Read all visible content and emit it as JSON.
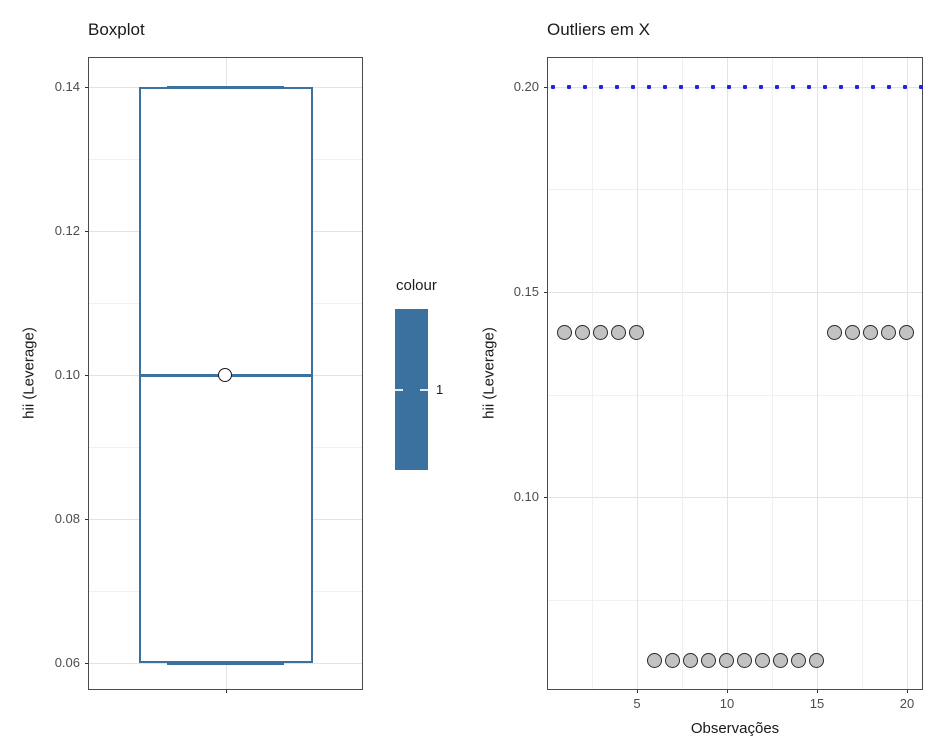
{
  "legend": {
    "title": "colour",
    "tick_label": "1",
    "bar_color": "#3a719f"
  },
  "chart_data": [
    {
      "id": "boxplot",
      "type": "boxplot",
      "title": "Boxplot",
      "xlabel": "",
      "ylabel": "hii (Leverage)",
      "y_major_ticks": [
        0.06,
        0.08,
        0.1,
        0.12,
        0.14
      ],
      "y_minor_gridlines": [
        0.07,
        0.09,
        0.11,
        0.13
      ],
      "ylim": [
        0.05625,
        0.144167
      ],
      "categories": [
        ""
      ],
      "box": {
        "whisker_low": 0.06,
        "q1": 0.06,
        "median": 0.1,
        "q3": 0.14,
        "whisker_high": 0.14,
        "center_point": 0.1
      },
      "box_color": "#3a719f",
      "grid": true,
      "legend_position": "right"
    },
    {
      "id": "scatter",
      "type": "scatter",
      "title": "Outliers em X",
      "xlabel": "Observações",
      "ylabel": "hii (Leverage)",
      "x_major_ticks": [
        5,
        10,
        15,
        20
      ],
      "x_minor_gridlines": [
        2.5,
        7.5,
        12.5,
        17.5
      ],
      "y_major_ticks": [
        0.1,
        0.15,
        0.2
      ],
      "y_minor_gridlines": [
        0.075,
        0.125,
        0.175
      ],
      "xlim": [
        0,
        20.889
      ],
      "ylim": [
        0.052927,
        0.207317
      ],
      "points": {
        "x": [
          1,
          2,
          3,
          4,
          5,
          6,
          7,
          8,
          9,
          10,
          11,
          12,
          13,
          14,
          15,
          16,
          17,
          18,
          19,
          20
        ],
        "y": [
          0.14,
          0.14,
          0.14,
          0.14,
          0.14,
          0.06,
          0.06,
          0.06,
          0.06,
          0.06,
          0.06,
          0.06,
          0.06,
          0.06,
          0.06,
          0.14,
          0.14,
          0.14,
          0.14,
          0.14
        ]
      },
      "point_fill": "#c2c2c2",
      "point_stroke": "#2b2b2b",
      "cutoff_line": {
        "y": 0.2,
        "color": "#2121e0",
        "style": "dotted"
      },
      "grid": true
    }
  ]
}
